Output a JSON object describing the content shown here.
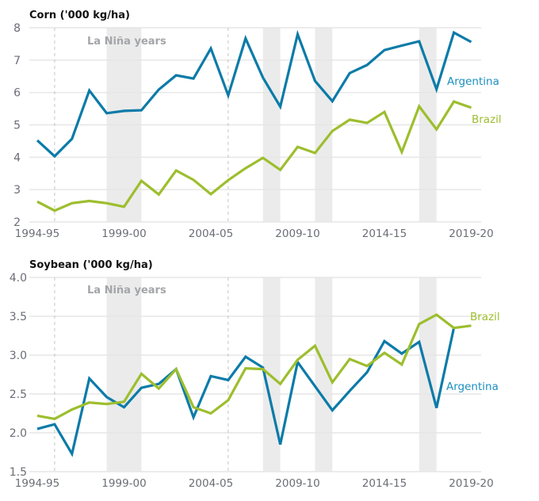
{
  "chart_data": [
    {
      "type": "line",
      "title": "Corn ('000 kg/ha)",
      "xlabel": "",
      "ylabel": "",
      "ylim": [
        2,
        8
      ],
      "yticks": [
        "8",
        "7",
        "6",
        "5",
        "4",
        "3",
        "2"
      ],
      "ytick_values": [
        8,
        7,
        6,
        5,
        4,
        3,
        2
      ],
      "grid": true,
      "x": [
        "1994-95",
        "1995-96",
        "1996-97",
        "1997-98",
        "1998-99",
        "1999-00",
        "2000-01",
        "2001-02",
        "2002-03",
        "2003-04",
        "2004-05",
        "2005-06",
        "2006-07",
        "2007-08",
        "2008-09",
        "2009-10",
        "2010-11",
        "2011-12",
        "2012-13",
        "2013-14",
        "2014-15",
        "2015-16",
        "2016-17",
        "2017-18",
        "2018-19",
        "2019-20"
      ],
      "xticks": [
        "1994-95",
        "1999-00",
        "2004-05",
        "2009-10",
        "2014-15",
        "2019-20"
      ],
      "dashed_reference_years": [
        "1995-96",
        "2005-06"
      ],
      "shaded_periods": [
        [
          "1998-99",
          "2000-01"
        ],
        [
          "2007-08",
          "2008-09"
        ],
        [
          "2010-11",
          "2011-12"
        ],
        [
          "2016-17",
          "2017-18"
        ]
      ],
      "shaded_label": "La Niña years",
      "series": [
        {
          "name": "Argentina",
          "color": "#0b7ba8",
          "label_color": "#1b8fc0",
          "values": [
            4.52,
            4.03,
            4.57,
            6.06,
            5.36,
            5.43,
            5.45,
            6.09,
            6.53,
            6.43,
            7.36,
            5.91,
            7.67,
            6.46,
            5.56,
            7.8,
            6.36,
            5.73,
            6.6,
            6.85,
            7.31,
            7.45,
            7.58,
            6.1,
            7.85,
            7.56
          ]
        },
        {
          "name": "Brazil",
          "color": "#9dbe2e",
          "label_color": "#9dbe2e",
          "values": [
            2.63,
            2.35,
            2.58,
            2.65,
            2.58,
            2.47,
            3.27,
            2.85,
            3.59,
            3.3,
            2.86,
            3.29,
            3.66,
            3.98,
            3.61,
            4.32,
            4.13,
            4.81,
            5.16,
            5.06,
            5.4,
            4.16,
            5.57,
            4.86,
            5.72,
            5.53
          ]
        }
      ]
    },
    {
      "type": "line",
      "title": "Soybean ('000 kg/ha)",
      "xlabel": "",
      "ylabel": "",
      "ylim": [
        1.5,
        4.0
      ],
      "yticks": [
        "4.0",
        "3.5",
        "3.0",
        "2.5",
        "2.0",
        "1.5"
      ],
      "ytick_values": [
        4.0,
        3.5,
        3.0,
        2.5,
        2.0,
        1.5
      ],
      "grid": true,
      "x": [
        "1994-95",
        "1995-96",
        "1996-97",
        "1997-98",
        "1998-99",
        "1999-00",
        "2000-01",
        "2001-02",
        "2002-03",
        "2003-04",
        "2004-05",
        "2005-06",
        "2006-07",
        "2007-08",
        "2008-09",
        "2009-10",
        "2010-11",
        "2011-12",
        "2012-13",
        "2013-14",
        "2014-15",
        "2015-16",
        "2016-17",
        "2017-18",
        "2018-19",
        "2019-20"
      ],
      "xticks": [
        "1994-95",
        "1999-00",
        "2004-05",
        "2009-10",
        "2014-15",
        "2019-20"
      ],
      "dashed_reference_years": [
        "1995-96",
        "2005-06"
      ],
      "shaded_periods": [
        [
          "1998-99",
          "2000-01"
        ],
        [
          "2007-08",
          "2008-09"
        ],
        [
          "2010-11",
          "2011-12"
        ],
        [
          "2016-17",
          "2017-18"
        ]
      ],
      "shaded_label": "La Niña years",
      "series": [
        {
          "name": "Argentina",
          "color": "#0b7ba8",
          "label_color": "#1b8fc0",
          "values": [
            2.05,
            2.11,
            1.73,
            2.7,
            2.46,
            2.33,
            2.58,
            2.63,
            2.82,
            2.2,
            2.73,
            2.68,
            2.98,
            2.84,
            1.85,
            2.91,
            2.6,
            2.29,
            2.54,
            2.78,
            3.18,
            3.02,
            3.17,
            2.32,
            3.35,
            null
          ]
        },
        {
          "name": "Brazil",
          "color": "#9dbe2e",
          "label_color": "#9dbe2e",
          "values": [
            2.22,
            2.18,
            2.3,
            2.39,
            2.37,
            2.4,
            2.76,
            2.57,
            2.82,
            2.33,
            2.25,
            2.42,
            2.83,
            2.82,
            2.63,
            2.94,
            3.12,
            2.65,
            2.95,
            2.86,
            3.03,
            2.88,
            3.4,
            3.52,
            3.35,
            3.38
          ]
        }
      ]
    }
  ]
}
